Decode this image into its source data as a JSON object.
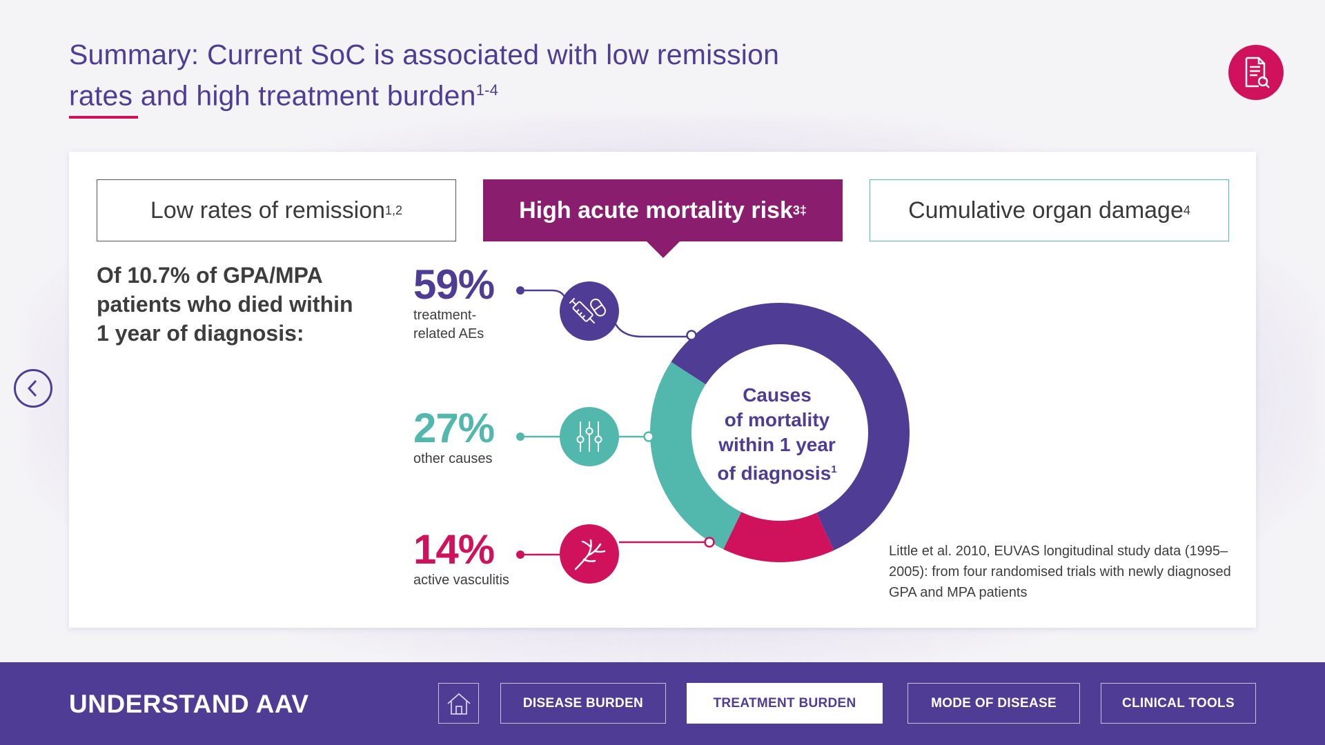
{
  "header": {
    "title_line1": "Summary: Current SoC is associated with low remission",
    "title_line2": "rates and high treatment burden",
    "title_sup": "1-4",
    "reference_icon": "document-search-icon",
    "accent_color": "#d0125d",
    "primary_color": "#4f3d95"
  },
  "nav": {
    "back_icon": "chevron-left-icon"
  },
  "tabs": [
    {
      "label": "Low rates of remission",
      "sup": "1,2"
    },
    {
      "label": "High acute mortality risk",
      "sup": "3‡"
    },
    {
      "label": "Cumulative organ damage",
      "sup": "4"
    }
  ],
  "intro_text": "Of 10.7% of GPA/MPA patients who died within 1 year of diagnosis:",
  "stats": [
    {
      "value": "59%",
      "label_line1": "treatment-",
      "label_line2": "related AEs",
      "icon": "syringe-pill-icon",
      "color": "#4f3d95"
    },
    {
      "value": "27%",
      "label_line1": "other causes",
      "label_line2": "",
      "icon": "sliders-icon",
      "color": "#52b8ae"
    },
    {
      "value": "14%",
      "label_line1": "active vasculitis",
      "label_line2": "",
      "icon": "blood-vessel-icon",
      "color": "#d0125d"
    }
  ],
  "chart_data": {
    "type": "pie",
    "variant": "donut",
    "title": "Causes of mortality within 1 year of diagnosis",
    "title_sup": "1",
    "slices": [
      {
        "label": "treatment-related AEs",
        "value": 59,
        "color": "#4f3d95"
      },
      {
        "label": "active vasculitis",
        "value": 14,
        "color": "#d0125d"
      },
      {
        "label": "other causes",
        "value": 27,
        "color": "#52b8ae"
      }
    ]
  },
  "center_text": {
    "line1": "Causes",
    "line2": "of mortality",
    "line3": "within 1 year",
    "line4": "of diagnosis",
    "sup": "1"
  },
  "source_note": "Little et al. 2010, EUVAS longitudinal study data (1995–2005): from four randomised trials with newly diagnosed GPA and MPA patients",
  "footer": {
    "brand": "UNDERSTAND AAV",
    "home_icon": "home-icon",
    "buttons": [
      {
        "label": "DISEASE BURDEN",
        "active": false
      },
      {
        "label": "TREATMENT BURDEN",
        "active": true
      },
      {
        "label": "MODE OF DISEASE",
        "active": false
      },
      {
        "label": "CLINICAL TOOLS",
        "active": false
      }
    ]
  }
}
